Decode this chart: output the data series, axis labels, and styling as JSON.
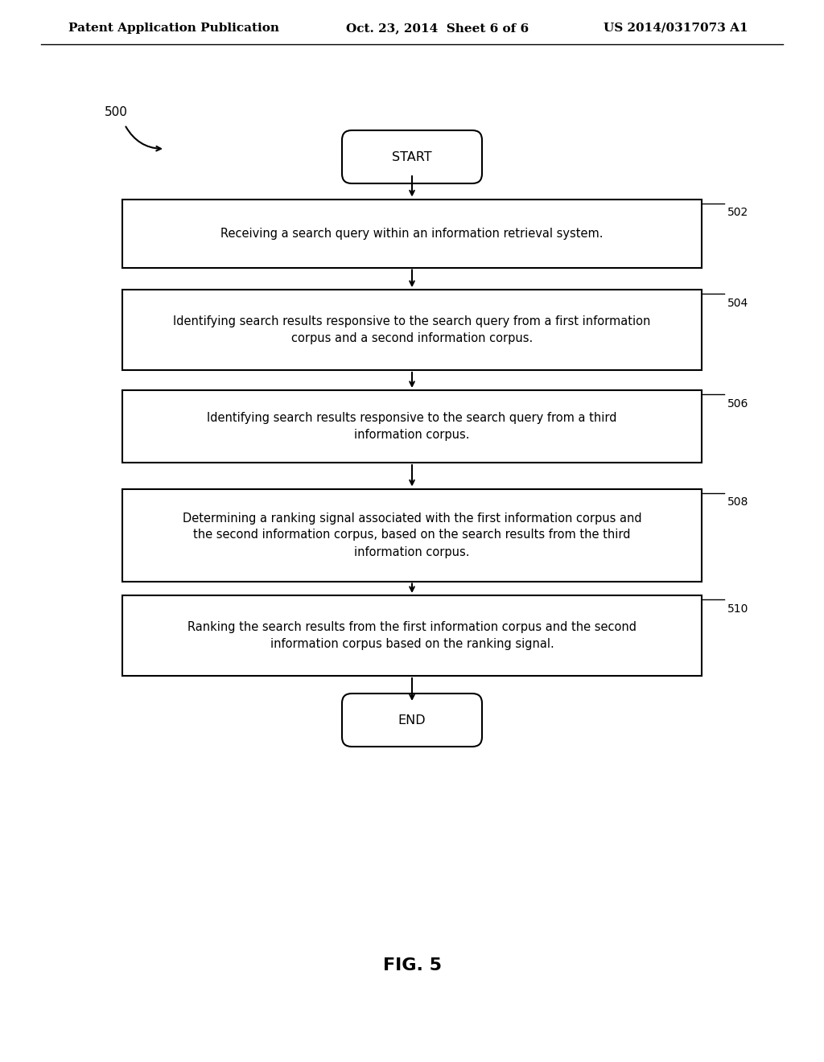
{
  "header_left": "Patent Application Publication",
  "header_mid": "Oct. 23, 2014  Sheet 6 of 6",
  "header_right": "US 2014/0317073 A1",
  "fig_label": "FIG. 5",
  "diagram_label": "500",
  "start_text": "START",
  "end_text": "END",
  "boxes": [
    {
      "id": "502",
      "text": "Receiving a search query within an information retrieval system.",
      "label": "502"
    },
    {
      "id": "504",
      "text": "Identifying search results responsive to the search query from a first information\ncorpus and a second information corpus.",
      "label": "504"
    },
    {
      "id": "506",
      "text": "Identifying search results responsive to the search query from a third\ninformation corpus.",
      "label": "506"
    },
    {
      "id": "508",
      "text": "Determining a ranking signal associated with the first information corpus and\nthe second information corpus, based on the search results from the third\ninformation corpus.",
      "label": "508"
    },
    {
      "id": "510",
      "text": "Ranking the search results from the first information corpus and the second\ninformation corpus based on the ranking signal.",
      "label": "510"
    }
  ],
  "bg_color": "#ffffff",
  "box_edge_color": "#000000",
  "text_color": "#000000",
  "arrow_color": "#000000",
  "font_size": 10.5,
  "label_font_size": 10,
  "header_font_size": 11,
  "fig_label_font_size": 16
}
